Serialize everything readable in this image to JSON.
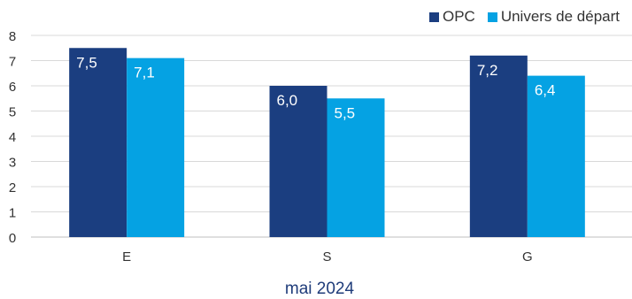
{
  "chart_data": {
    "type": "bar",
    "title": "",
    "xlabel": "mai 2024",
    "ylabel": "",
    "ylim": [
      0,
      8
    ],
    "yticks": [
      0,
      1,
      2,
      3,
      4,
      5,
      6,
      7,
      8
    ],
    "grid": true,
    "legend_position": "top-right",
    "categories": [
      "E",
      "S",
      "G"
    ],
    "series": [
      {
        "name": "OPC",
        "color": "#1b3e80",
        "values": [
          7.5,
          6.0,
          7.2
        ],
        "labels": [
          "7,5",
          "6,0",
          "7,2"
        ]
      },
      {
        "name": "Univers de départ",
        "color": "#05a2e3",
        "values": [
          7.1,
          5.5,
          6.4
        ],
        "labels": [
          "7,1",
          "5,5",
          "6,4"
        ]
      }
    ]
  }
}
